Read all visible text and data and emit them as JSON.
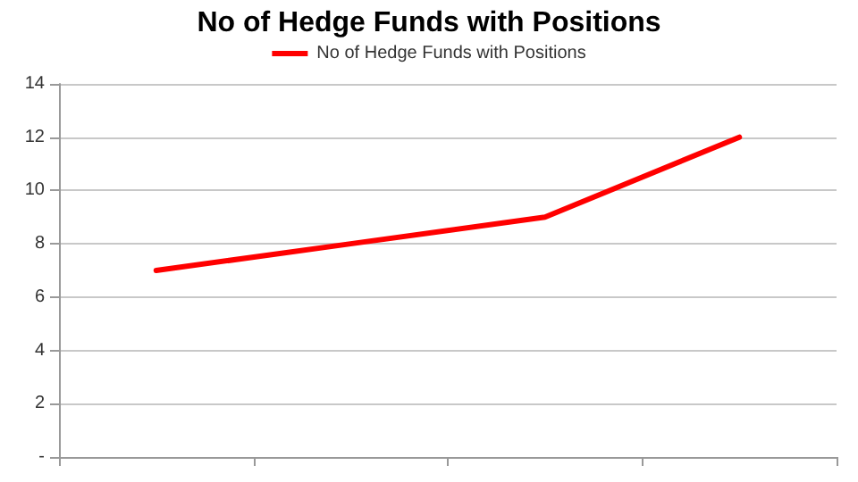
{
  "chart_data": {
    "type": "line",
    "title": "No of Hedge Funds with Positions",
    "categories": [
      null,
      null,
      null,
      null
    ],
    "series": [
      {
        "name": "No of Hedge Funds with Positions",
        "color": "#ff0000",
        "values": [
          7,
          8,
          9,
          12
        ]
      }
    ],
    "ylim": [
      0,
      14
    ],
    "yticks": [
      {
        "value": 0,
        "label": "-"
      },
      2,
      4,
      6,
      8,
      10,
      12,
      14
    ],
    "grid": "y",
    "legend": "top",
    "marker": "none",
    "line_style": "solid"
  }
}
